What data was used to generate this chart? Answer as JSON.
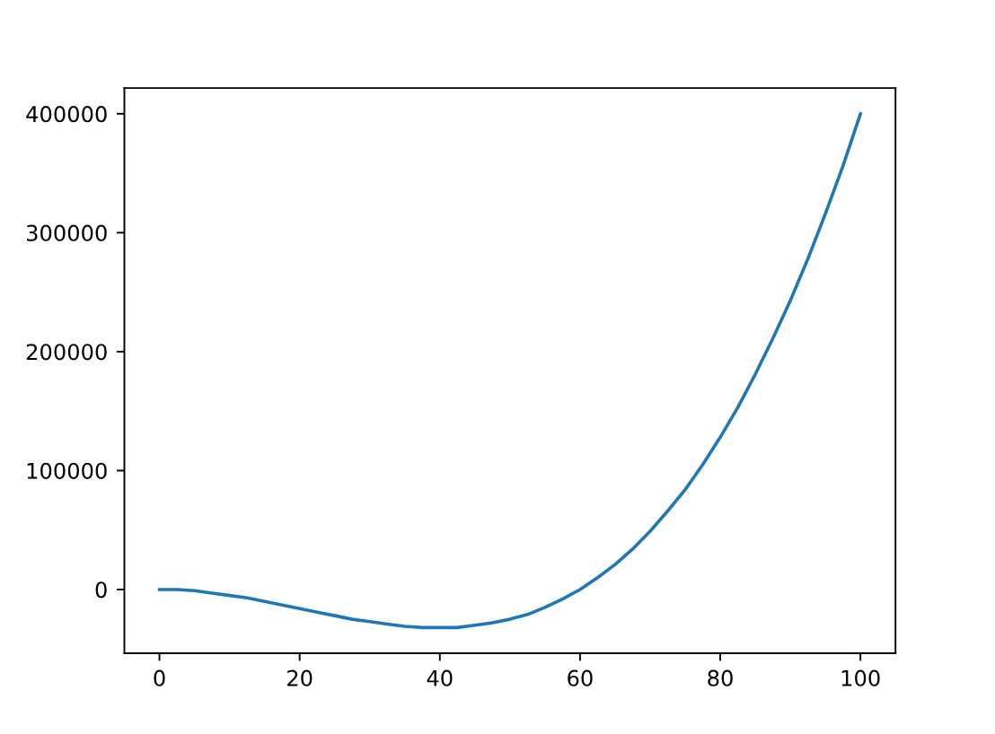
{
  "chart_data": {
    "type": "line",
    "x": [
      0,
      2.5,
      5,
      7.5,
      10,
      12.5,
      15,
      17.5,
      20,
      22.5,
      25,
      27.5,
      30,
      32.5,
      35,
      37.5,
      40,
      42.5,
      45,
      47.5,
      50,
      52.5,
      55,
      57.5,
      60,
      62.5,
      65,
      67.5,
      70,
      72.5,
      75,
      77.5,
      80,
      82.5,
      85,
      87.5,
      90,
      92.5,
      95,
      97.5,
      100
    ],
    "values": [
      0,
      0,
      -1000,
      -3000,
      -5000,
      -7000,
      -10000,
      -13000,
      -16000,
      -19000,
      -22000,
      -25000,
      -27000,
      -29000,
      -31000,
      -32000,
      -32000,
      -32000,
      -30000,
      -28000,
      -25000,
      -21000,
      -15000,
      -8000,
      0,
      10000,
      21000,
      34000,
      49000,
      66000,
      84000,
      105000,
      128000,
      153000,
      181000,
      211000,
      243000,
      278000,
      316000,
      356000,
      400000
    ],
    "color": "#1f77b4",
    "xlim": [
      -5,
      105
    ],
    "ylim": [
      -53600,
      421600
    ],
    "xticks": [
      0,
      20,
      40,
      60,
      80,
      100
    ],
    "yticks": [
      0,
      100000,
      200000,
      300000,
      400000
    ],
    "grid": false
  }
}
